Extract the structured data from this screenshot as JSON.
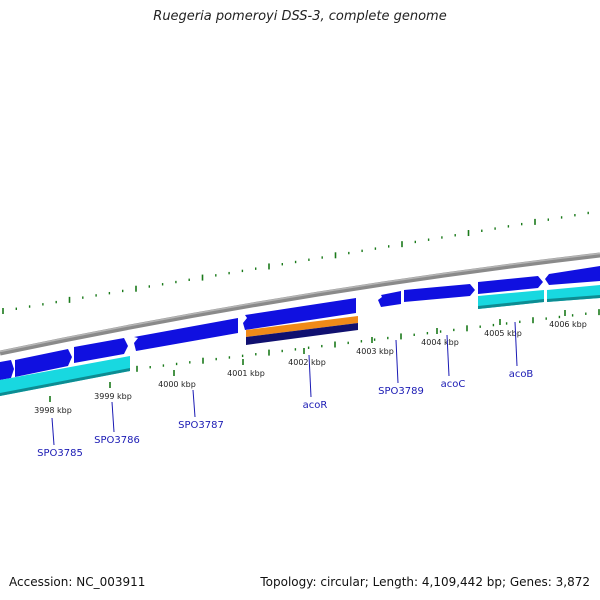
{
  "title": "Ruegeria pomeroyi DSS-3, complete genome",
  "footer": {
    "accession": "Accession: NC_003911",
    "stats": "Topology: circular; Length: 4,109,442 bp; Genes: 3,872"
  },
  "kbp_ticks": [
    "3998 kbp",
    "3999 kbp",
    "4000 kbp",
    "4001 kbp",
    "4002 kbp",
    "4003 kbp",
    "4004 kbp",
    "4005 kbp",
    "4006 kbp"
  ],
  "gene_labels": [
    "SPO3785",
    "SPO3786",
    "SPO3787",
    "acoR",
    "SPO3789",
    "acoC",
    "acoB"
  ],
  "colors": {
    "backbone": "#8a8a8a",
    "cds_forward": "#1010e0",
    "cds_reverse": "#18d8e0",
    "regulator_orange": "#f08a18",
    "regulator_navy": "#101070",
    "ticks": "#1a7a1a",
    "gene_label": "#1a1ab4"
  }
}
